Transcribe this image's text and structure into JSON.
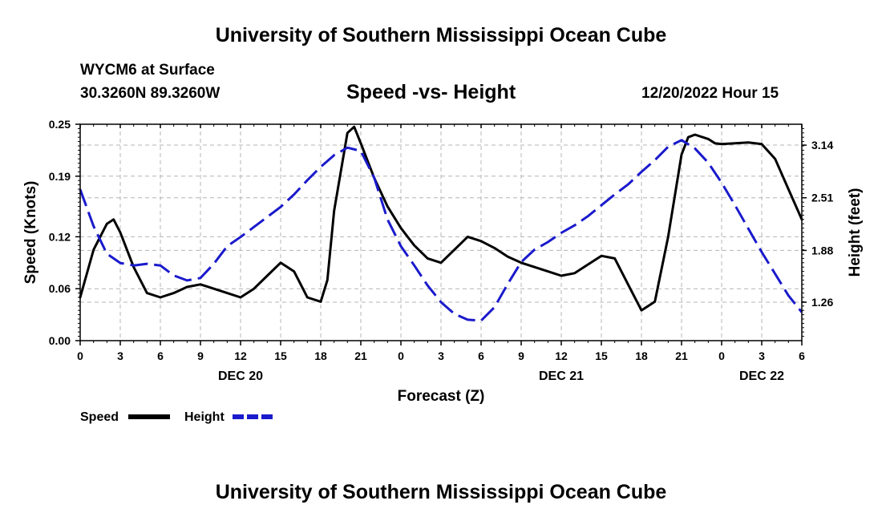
{
  "header": {
    "title": "University of Southern Mississippi Ocean Cube",
    "station": "WYCM6 at Surface",
    "coords": "30.3260N  89.3260W",
    "subtitle": "Speed -vs- Height",
    "datetime": "12/20/2022 Hour 15"
  },
  "footer": {
    "title": "University of Southern Mississippi Ocean Cube"
  },
  "colors": {
    "speed": "#000000",
    "height": "#1a1acc",
    "grid": "#b4b4b4"
  },
  "chart_data": {
    "type": "line",
    "title": "Speed -vs- Height",
    "xlabel": "Forecast (Z)",
    "ylabel": "Speed (Knots)",
    "y2label": "Height (feet)",
    "x_range": [
      0,
      54
    ],
    "ylim": [
      0,
      0.25
    ],
    "y2lim": [
      0.8,
      3.39
    ],
    "x_ticks": [
      0,
      3,
      6,
      9,
      12,
      15,
      18,
      21,
      24,
      27,
      30,
      33,
      36,
      39,
      42,
      45,
      48,
      51,
      54
    ],
    "x_tick_labels": [
      "0",
      "3",
      "6",
      "9",
      "12",
      "15",
      "18",
      "21",
      "0",
      "3",
      "6",
      "9",
      "12",
      "15",
      "18",
      "21",
      "0",
      "3",
      "6"
    ],
    "date_labels": [
      {
        "x": 12,
        "label": "DEC 20"
      },
      {
        "x": 36,
        "label": "DEC 21"
      },
      {
        "x": 51,
        "label": "DEC 22"
      }
    ],
    "y_ticks": [
      0.0,
      0.06,
      0.12,
      0.19,
      0.25
    ],
    "y_tick_labels": [
      "0.00",
      "0.06",
      "0.12",
      "0.19",
      "0.25"
    ],
    "y2_ticks": [
      1.26,
      1.88,
      2.51,
      3.14
    ],
    "y2_tick_labels": [
      "1.26",
      "1.88",
      "2.51",
      "3.14"
    ],
    "grid": true,
    "legend": {
      "position": "bottom-left",
      "entries": [
        {
          "name": "Speed",
          "style": "solid"
        },
        {
          "name": "Height",
          "style": "dashed"
        }
      ]
    },
    "series": [
      {
        "name": "Speed",
        "axis": "left",
        "style": "solid",
        "x": [
          0,
          1,
          2,
          2.5,
          3,
          4,
          5,
          6,
          7,
          8,
          9,
          10,
          11,
          12,
          13,
          14,
          15,
          16,
          17,
          18,
          18.5,
          19,
          20,
          20.5,
          21,
          22,
          23,
          24,
          25,
          26,
          27,
          28,
          29,
          30,
          31,
          32,
          33,
          34,
          35,
          36,
          37,
          38,
          39,
          40,
          41,
          42,
          43,
          44,
          45,
          45.5,
          46,
          47,
          47.5,
          48,
          49,
          50,
          51,
          52,
          53,
          54
        ],
        "values": [
          0.05,
          0.105,
          0.135,
          0.14,
          0.125,
          0.085,
          0.055,
          0.05,
          0.055,
          0.062,
          0.065,
          0.06,
          0.055,
          0.05,
          0.06,
          0.075,
          0.09,
          0.08,
          0.05,
          0.045,
          0.07,
          0.15,
          0.24,
          0.247,
          0.228,
          0.188,
          0.155,
          0.13,
          0.11,
          0.095,
          0.09,
          0.105,
          0.12,
          0.115,
          0.107,
          0.097,
          0.09,
          0.085,
          0.08,
          0.075,
          0.078,
          0.088,
          0.098,
          0.095,
          0.065,
          0.035,
          0.045,
          0.12,
          0.215,
          0.235,
          0.238,
          0.233,
          0.228,
          0.227,
          0.228,
          0.229,
          0.227,
          0.21,
          0.175,
          0.14
        ]
      },
      {
        "name": "Height",
        "axis": "right",
        "style": "dashed",
        "x": [
          0,
          1,
          2,
          3,
          4,
          5,
          6,
          7,
          8,
          9,
          10,
          11,
          12,
          13,
          14,
          15,
          16,
          17,
          18,
          19,
          20,
          21,
          22,
          23,
          24,
          25,
          26,
          27,
          28,
          29,
          30,
          31,
          32,
          33,
          34,
          35,
          36,
          37,
          38,
          39,
          40,
          41,
          42,
          43,
          44,
          45,
          46,
          47,
          48,
          49,
          50,
          51,
          52,
          53,
          54
        ],
        "values": [
          2.61,
          2.17,
          1.84,
          1.73,
          1.7,
          1.72,
          1.7,
          1.58,
          1.52,
          1.55,
          1.72,
          1.93,
          2.04,
          2.16,
          2.28,
          2.4,
          2.55,
          2.72,
          2.88,
          3.02,
          3.11,
          3.07,
          2.75,
          2.25,
          1.93,
          1.7,
          1.46,
          1.26,
          1.12,
          1.05,
          1.04,
          1.2,
          1.48,
          1.74,
          1.89,
          1.98,
          2.09,
          2.18,
          2.29,
          2.42,
          2.55,
          2.67,
          2.82,
          2.96,
          3.12,
          3.2,
          3.1,
          2.93,
          2.69,
          2.42,
          2.14,
          1.86,
          1.6,
          1.34,
          1.14
        ]
      }
    ]
  }
}
